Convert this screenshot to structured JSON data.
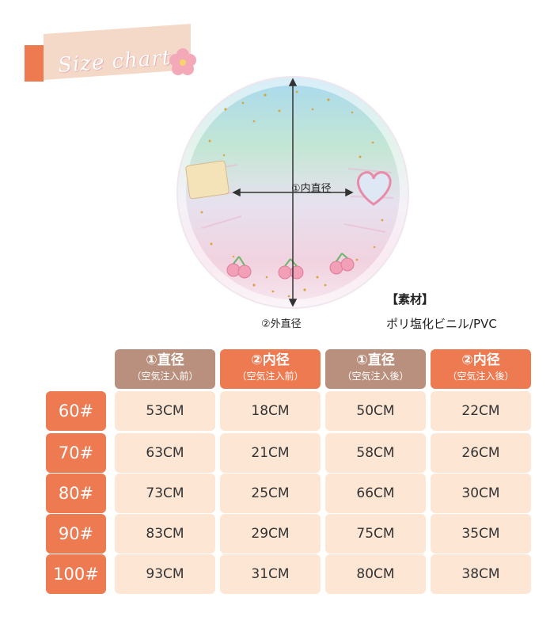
{
  "tag": {
    "label": "Size chart"
  },
  "dimensions": {
    "inner_label": "①内直径",
    "outer_label": "②外直径"
  },
  "material": {
    "title": "【素材】",
    "value": "ポリ塩化ビニル/PVC"
  },
  "colors": {
    "orange": "#ee7a52",
    "brown": "#b9907d",
    "cell": "#fde6d4"
  },
  "table": {
    "headers": [
      {
        "line1": "①直径",
        "line2": "（空気注入前）",
        "color": "brown"
      },
      {
        "line1": "②内径",
        "line2": "（空気注入前）",
        "color": "orange"
      },
      {
        "line1": "①直径",
        "line2": "（空気注入後）",
        "color": "brown"
      },
      {
        "line1": "②内径",
        "line2": "（空気注入後）",
        "color": "orange"
      }
    ],
    "rows": [
      {
        "size": "60#",
        "values": [
          "53CM",
          "18CM",
          "50CM",
          "22CM"
        ]
      },
      {
        "size": "70#",
        "values": [
          "63CM",
          "21CM",
          "58CM",
          "26CM"
        ]
      },
      {
        "size": "80#",
        "values": [
          "73CM",
          "25CM",
          "66CM",
          "30CM"
        ]
      },
      {
        "size": "90#",
        "values": [
          "83CM",
          "29CM",
          "75CM",
          "35CM"
        ]
      },
      {
        "size": "100#",
        "values": [
          "93CM",
          "31CM",
          "80CM",
          "38CM"
        ]
      }
    ]
  }
}
